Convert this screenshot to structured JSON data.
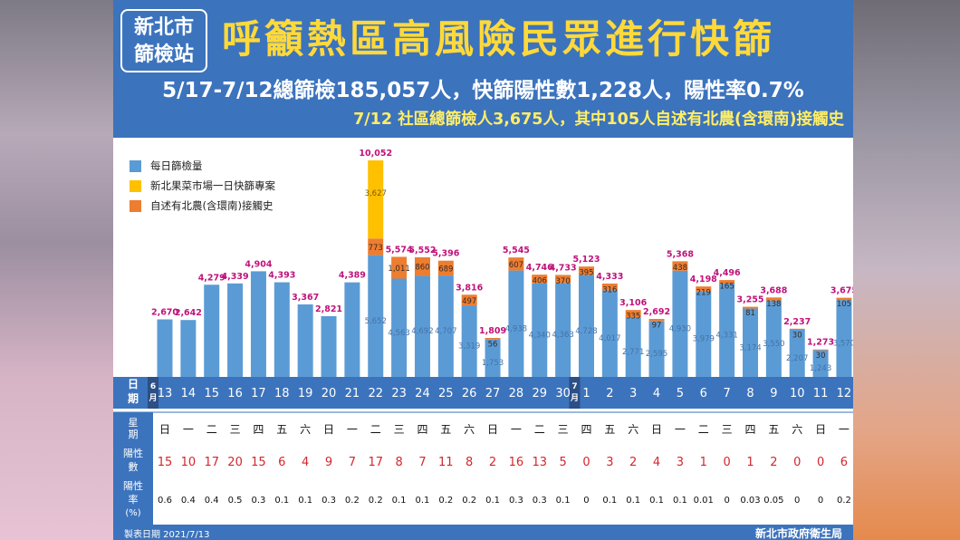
{
  "header": {
    "org": "新北市 篩檢站",
    "org_line1": "新北市",
    "org_line2": "篩檢站",
    "title": "呼籲熱區高風險民眾進行快篩",
    "subtitle1": "5/17-7/12總篩檢185,057人，快篩陽性數1,228人，陽性率0.7%",
    "subtitle2": "7/12 社區總篩檢人3,675人，其中105人自述有北農(含環南)接觸史"
  },
  "footer": {
    "left": "製表日期 2021/7/13",
    "right": "新北市政府衛生局"
  },
  "colors": {
    "blue": "#5b9bd5",
    "yellow": "#ffc000",
    "orange": "#ed7d31",
    "total_label": "#c0117a",
    "header_bg": "#3c73bd",
    "positive_red": "#d4262d"
  },
  "chart_data": {
    "type": "bar",
    "stacked": true,
    "title": "",
    "xlabel": "",
    "ylabel": "",
    "legend": [
      "每日篩檢量",
      "新北果菜市場一日快篩專案",
      "自述有北農(含環南)接觸史"
    ],
    "legend_position": "top-left",
    "grid": false,
    "categories": [
      "13",
      "14",
      "15",
      "16",
      "17",
      "18",
      "19",
      "20",
      "21",
      "22",
      "23",
      "24",
      "25",
      "26",
      "27",
      "28",
      "29",
      "30",
      "1",
      "2",
      "3",
      "4",
      "5",
      "6",
      "7",
      "8",
      "9",
      "10",
      "11",
      "12"
    ],
    "month_markers": [
      {
        "index": 0,
        "label": "6月"
      },
      {
        "index": 18,
        "label": "7月"
      }
    ],
    "totals": [
      "2,670",
      "2,642",
      "4,279",
      "4,339",
      "4,904",
      "4,393",
      "3,367",
      "2,821",
      "4,389",
      "10,052",
      "5,574",
      "5,552",
      "5,396",
      "3,816",
      "1,809",
      "5,545",
      "4,746",
      "4,733",
      "5,123",
      "4,333",
      "3,106",
      "2,692",
      "5,368",
      "4,198",
      "4,496",
      "3,255",
      "3,688",
      "2,237",
      "1,273",
      "3,675"
    ],
    "series": [
      {
        "name": "每日篩檢量",
        "values": [
          2670,
          2642,
          4279,
          4339,
          4904,
          4393,
          3367,
          2821,
          4389,
          5652,
          4563,
          4692,
          4707,
          3319,
          1753,
          4938,
          4340,
          4363,
          4728,
          4017,
          2771,
          2595,
          4930,
          3979,
          4331,
          3174,
          3550,
          2207,
          1243,
          3570
        ],
        "labels": [
          "",
          "",
          "",
          "",
          "",
          "",
          "",
          "",
          "",
          "5,652",
          "4,563",
          "4,692",
          "4,707",
          "3,319",
          "1,753",
          "4,938",
          "4,340",
          "4,363",
          "4,728",
          "4,017",
          "2,771",
          "2,595",
          "4,930",
          "3,979",
          "4,331",
          "3,174",
          "3,550",
          "2,207",
          "1,243",
          "3,570"
        ]
      },
      {
        "name": "自述有北農(含環南)接觸史",
        "values": [
          0,
          0,
          0,
          0,
          0,
          0,
          0,
          0,
          0,
          773,
          1011,
          860,
          689,
          497,
          56,
          607,
          406,
          370,
          395,
          316,
          335,
          97,
          438,
          219,
          165,
          81,
          138,
          30,
          30,
          105
        ],
        "labels": [
          "",
          "",
          "",
          "",
          "",
          "",
          "",
          "",
          "",
          "773",
          "1,011",
          "860",
          "689",
          "497",
          "56",
          "607",
          "406",
          "370",
          "395",
          "316",
          "335",
          "97",
          "438",
          "219",
          "165",
          "81",
          "138",
          "30",
          "30",
          "105"
        ]
      },
      {
        "name": "新北果菜市場一日快篩專案",
        "values": [
          0,
          0,
          0,
          0,
          0,
          0,
          0,
          0,
          0,
          3627,
          0,
          0,
          0,
          0,
          0,
          0,
          0,
          0,
          0,
          0,
          0,
          0,
          0,
          0,
          0,
          0,
          0,
          0,
          0,
          0
        ],
        "labels": [
          "",
          "",
          "",
          "",
          "",
          "",
          "",
          "",
          "",
          "3,627",
          "",
          "",
          "",
          "",
          "",
          "",
          "",
          "",
          "",
          "",
          "",
          "",
          "",
          "",
          "",
          "",
          "",
          "",
          "",
          ""
        ]
      }
    ],
    "ylim": [
      0,
      10052
    ]
  },
  "table": {
    "date_label": "日期",
    "weekday_label": "星期",
    "positive_label": "陽性數",
    "rate_label": "陽性率(%)",
    "weekdays": [
      "日",
      "一",
      "二",
      "三",
      "四",
      "五",
      "六",
      "日",
      "一",
      "二",
      "三",
      "四",
      "五",
      "六",
      "日",
      "一",
      "二",
      "三",
      "四",
      "五",
      "六",
      "日",
      "一",
      "二",
      "三",
      "四",
      "五",
      "六",
      "日",
      "一"
    ],
    "positives": [
      "15",
      "10",
      "17",
      "20",
      "15",
      "6",
      "4",
      "9",
      "7",
      "17",
      "8",
      "7",
      "11",
      "8",
      "2",
      "16",
      "13",
      "5",
      "0",
      "3",
      "2",
      "4",
      "3",
      "1",
      "0",
      "1",
      "2",
      "0",
      "0",
      "6"
    ],
    "rates": [
      "0.6",
      "0.4",
      "0.4",
      "0.5",
      "0.3",
      "0.1",
      "0.1",
      "0.3",
      "0.2",
      "0.2",
      "0.1",
      "0.1",
      "0.2",
      "0.2",
      "0.1",
      "0.3",
      "0.3",
      "0.1",
      "0",
      "0.1",
      "0.1",
      "0.1",
      "0.1",
      "0.01",
      "0",
      "0.03",
      "0.05",
      "0",
      "0",
      "0.2"
    ]
  }
}
